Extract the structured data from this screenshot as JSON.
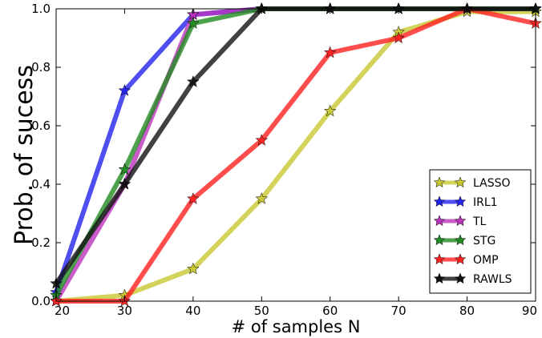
{
  "chart_data": {
    "type": "line",
    "title": "",
    "xlabel": "# of samples N",
    "ylabel": "Prob. of sucess",
    "xlim": [
      20,
      90
    ],
    "ylim": [
      0,
      1.0
    ],
    "xticks": [
      "20",
      "30",
      "40",
      "50",
      "60",
      "70",
      "80",
      "90"
    ],
    "yticks": [
      "0.0",
      "0.2",
      "0.4",
      "0.6",
      "0.8",
      "1.0"
    ],
    "x": [
      20,
      30,
      40,
      50,
      60,
      70,
      80,
      90
    ],
    "grid": false,
    "legend_position": "bottom-right",
    "marker": "star",
    "series": [
      {
        "name": "LASSO",
        "color": "#c8c832",
        "values": [
          0.0,
          0.02,
          0.11,
          0.35,
          0.65,
          0.92,
          0.99,
          0.99
        ]
      },
      {
        "name": "IRL1",
        "color": "#2222ee",
        "values": [
          0.03,
          0.72,
          0.98,
          1.0,
          1.0,
          1.0,
          1.0,
          1.0
        ]
      },
      {
        "name": "TL",
        "color": "#bb33bb",
        "values": [
          0.0,
          0.4,
          0.98,
          1.0,
          1.0,
          1.0,
          1.0,
          1.0
        ]
      },
      {
        "name": "STG",
        "color": "#228b22",
        "values": [
          0.02,
          0.45,
          0.95,
          1.0,
          1.0,
          1.0,
          1.0,
          1.0
        ]
      },
      {
        "name": "OMP",
        "color": "#ff2020",
        "values": [
          0.0,
          0.0,
          0.35,
          0.55,
          0.85,
          0.9,
          1.0,
          0.95
        ]
      },
      {
        "name": "RAWLS",
        "color": "#111111",
        "values": [
          0.06,
          0.4,
          0.75,
          1.0,
          1.0,
          1.0,
          1.0,
          1.0
        ]
      }
    ]
  }
}
